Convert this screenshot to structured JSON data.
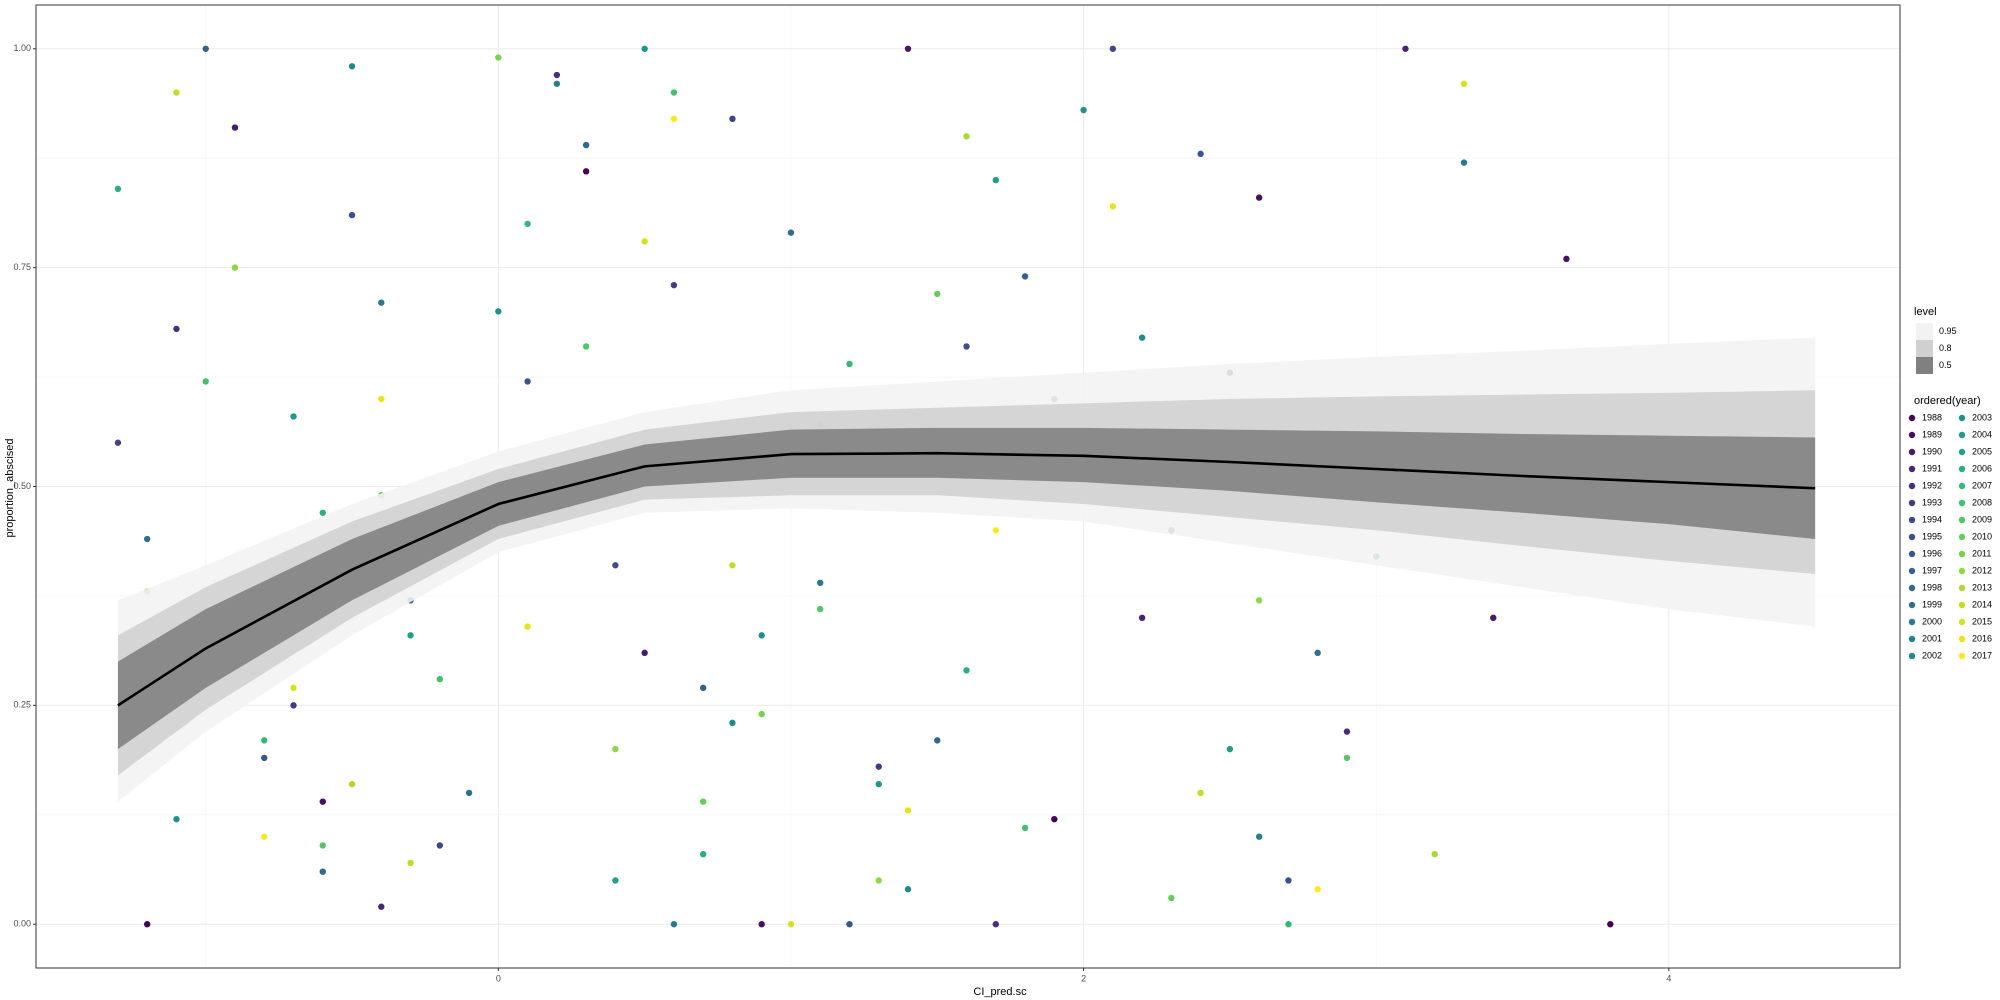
{
  "chart_data": {
    "type": "scatter",
    "x_label": "CI_pred.sc",
    "y_label": "proportion_abscised",
    "xlim": [
      -1.58,
      4.79
    ],
    "ylim": [
      -0.05,
      1.05
    ],
    "xticks": [
      0,
      2,
      4
    ],
    "yticks": [
      {
        "value": 0,
        "label": "0.00"
      },
      {
        "value": 0.25,
        "label": "0.25"
      },
      {
        "value": 0.5,
        "label": "0.50"
      },
      {
        "value": 0.75,
        "label": "0.75"
      },
      {
        "value": 1,
        "label": "1.00"
      }
    ],
    "x_minor_breaks": [
      -1,
      1,
      3
    ],
    "y_minor_breaks": [
      0.125,
      0.375,
      0.625,
      0.875
    ],
    "grid": true,
    "ribbon_legend_title": "level",
    "point_legend_title": "ordered(year)",
    "fit_x": [
      -1.3,
      -1,
      -0.5,
      0,
      0.5,
      1,
      1.5,
      2,
      2.5,
      3,
      3.5,
      4,
      4.5
    ],
    "fit": [
      0.25,
      0.315,
      0.405,
      0.48,
      0.523,
      0.537,
      0.538,
      0.535,
      0.528,
      0.52,
      0.512,
      0.505,
      0.498
    ],
    "fit_color": "#000000",
    "ribbons": [
      {
        "name": "0.95",
        "color": "#f2f2f2",
        "lower": [
          0.14,
          0.22,
          0.33,
          0.425,
          0.47,
          0.475,
          0.47,
          0.46,
          0.435,
          0.41,
          0.385,
          0.36,
          0.34
        ],
        "upper": [
          0.37,
          0.41,
          0.48,
          0.54,
          0.585,
          0.61,
          0.62,
          0.63,
          0.64,
          0.648,
          0.655,
          0.663,
          0.67
        ]
      },
      {
        "name": "0.8",
        "color": "#d0d0d0",
        "lower": [
          0.17,
          0.245,
          0.35,
          0.44,
          0.485,
          0.49,
          0.49,
          0.48,
          0.465,
          0.45,
          0.432,
          0.415,
          0.4
        ],
        "upper": [
          0.33,
          0.385,
          0.46,
          0.52,
          0.565,
          0.585,
          0.59,
          0.595,
          0.6,
          0.603,
          0.605,
          0.607,
          0.61
        ]
      },
      {
        "name": "0.5",
        "color": "#808080",
        "lower": [
          0.2,
          0.27,
          0.37,
          0.455,
          0.5,
          0.51,
          0.51,
          0.505,
          0.495,
          0.482,
          0.47,
          0.457,
          0.44
        ],
        "upper": [
          0.3,
          0.36,
          0.44,
          0.505,
          0.548,
          0.565,
          0.567,
          0.567,
          0.565,
          0.563,
          0.56,
          0.558,
          0.556
        ]
      }
    ],
    "series": [
      {
        "name": "1988",
        "color": "#440154",
        "x": [
          -1.2,
          0.3,
          1.9,
          3.8
        ],
        "y": [
          0,
          0.86,
          0.12,
          0
        ]
      },
      {
        "name": "1989",
        "color": "#470e61",
        "x": [
          -0.6,
          0.9,
          2.6,
          3.65
        ],
        "y": [
          0.14,
          0,
          0.83,
          0.76
        ]
      },
      {
        "name": "1990",
        "color": "#481a6c",
        "x": [
          -0.9,
          0.5,
          1.4,
          3.4
        ],
        "y": [
          0.91,
          0.31,
          1,
          0.35
        ]
      },
      {
        "name": "1991",
        "color": "#482475",
        "x": [
          -0.4,
          1.1,
          2.2,
          3.1
        ],
        "y": [
          0.02,
          0.57,
          0.35,
          1
        ]
      },
      {
        "name": "1992",
        "color": "#472f7d",
        "x": [
          -1.1,
          0.2,
          1.7,
          2.9
        ],
        "y": [
          0.68,
          0.97,
          0,
          0.22
        ]
      },
      {
        "name": "1993",
        "color": "#443a83",
        "x": [
          -0.7,
          0.6,
          1.3,
          2.5
        ],
        "y": [
          0.25,
          0.73,
          0.18,
          0.63
        ]
      },
      {
        "name": "1994",
        "color": "#414487",
        "x": [
          -1.3,
          -0.2,
          0.8,
          2.1
        ],
        "y": [
          0.55,
          0.09,
          0.92,
          1
        ]
      },
      {
        "name": "1995",
        "color": "#3d4e8a",
        "x": [
          -0.5,
          0.4,
          1.6,
          2.7
        ],
        "y": [
          0.81,
          0.41,
          0.66,
          0.05
        ]
      },
      {
        "name": "1996",
        "color": "#39568c",
        "x": [
          -0.8,
          0.1,
          1.2,
          2.4
        ],
        "y": [
          0.19,
          0.62,
          0,
          0.88
        ]
      },
      {
        "name": "1997",
        "color": "#355f8d",
        "x": [
          -1,
          -0.3,
          0.7,
          1.8
        ],
        "y": [
          1,
          0.37,
          0.27,
          0.74
        ]
      },
      {
        "name": "1998",
        "color": "#31688e",
        "x": [
          -0.6,
          0.3,
          1.5,
          2.3
        ],
        "y": [
          0.06,
          0.89,
          0.21,
          0.45
        ]
      },
      {
        "name": "1999",
        "color": "#2d708e",
        "x": [
          -1.2,
          -0.1,
          1,
          2.8
        ],
        "y": [
          0.44,
          0.15,
          0.79,
          0.31
        ]
      },
      {
        "name": "2000",
        "color": "#2a788e",
        "x": [
          -0.4,
          0.6,
          1.1,
          3.3
        ],
        "y": [
          0.71,
          0,
          0.39,
          0.87
        ]
      },
      {
        "name": "2001",
        "color": "#27808e",
        "x": [
          -0.9,
          0.2,
          1.9,
          2.6
        ],
        "y": [
          0.3,
          0.96,
          0.6,
          0.1
        ]
      },
      {
        "name": "2002",
        "color": "#23888e",
        "x": [
          -0.5,
          0.8,
          1.4,
          2.2
        ],
        "y": [
          0.98,
          0.23,
          0.04,
          0.67
        ]
      },
      {
        "name": "2003",
        "color": "#21908c",
        "x": [
          -1.1,
          0,
          0.9,
          2
        ],
        "y": [
          0.12,
          0.7,
          0.33,
          0.93
        ]
      },
      {
        "name": "2004",
        "color": "#1f988b",
        "x": [
          -0.7,
          0.5,
          1.3,
          3
        ],
        "y": [
          0.58,
          1,
          0.16,
          0.42
        ]
      },
      {
        "name": "2005",
        "color": "#22a085",
        "x": [
          -0.3,
          0.4,
          1.7,
          2.5
        ],
        "y": [
          0.33,
          0.05,
          0.85,
          0.2
        ]
      },
      {
        "name": "2006",
        "color": "#28ae80",
        "x": [
          -1.3,
          -0.6,
          0.7,
          1.6
        ],
        "y": [
          0.84,
          0.47,
          0.08,
          0.29
        ]
      },
      {
        "name": "2007",
        "color": "#35b779",
        "x": [
          -0.8,
          0.1,
          1.2,
          2.7
        ],
        "y": [
          0.21,
          0.8,
          0.64,
          0
        ]
      },
      {
        "name": "2008",
        "color": "#43bf71",
        "x": [
          -1,
          -0.2,
          0.6,
          1.8
        ],
        "y": [
          0.62,
          0.28,
          0.95,
          0.11
        ]
      },
      {
        "name": "2009",
        "color": "#54c568",
        "x": [
          -0.6,
          0.3,
          1.1,
          2.9
        ],
        "y": [
          0.09,
          0.66,
          0.36,
          0.19
        ]
      },
      {
        "name": "2010",
        "color": "#66cb5d",
        "x": [
          -0.4,
          0.7,
          1.5,
          2.3
        ],
        "y": [
          0.49,
          0.14,
          0.72,
          0.03
        ]
      },
      {
        "name": "2011",
        "color": "#7ad151",
        "x": [
          -1.2,
          0,
          0.9,
          1.9
        ],
        "y": [
          0.38,
          0.99,
          0.24,
          0.56
        ]
      },
      {
        "name": "2012",
        "color": "#8fd744",
        "x": [
          -0.9,
          0.4,
          1.3,
          2.6
        ],
        "y": [
          0.75,
          0.2,
          0.05,
          0.37
        ]
      },
      {
        "name": "2013",
        "color": "#a5db36",
        "x": [
          -0.5,
          0.2,
          1.6,
          3.2
        ],
        "y": [
          0.16,
          0.53,
          0.9,
          0.08
        ]
      },
      {
        "name": "2014",
        "color": "#bbdf27",
        "x": [
          -1.1,
          -0.3,
          0.8,
          2.4
        ],
        "y": [
          0.95,
          0.07,
          0.41,
          0.15
        ]
      },
      {
        "name": "2015",
        "color": "#d2e21b",
        "x": [
          -0.7,
          0.5,
          1,
          3.3
        ],
        "y": [
          0.27,
          0.78,
          0,
          0.96
        ]
      },
      {
        "name": "2016",
        "color": "#e7e419",
        "x": [
          -0.4,
          0.1,
          1.4,
          2.1
        ],
        "y": [
          0.6,
          0.34,
          0.13,
          0.82
        ]
      },
      {
        "name": "2017",
        "color": "#fde725",
        "x": [
          -0.8,
          0.6,
          1.7,
          2.8
        ],
        "y": [
          0.1,
          0.92,
          0.45,
          0.04
        ]
      }
    ]
  }
}
